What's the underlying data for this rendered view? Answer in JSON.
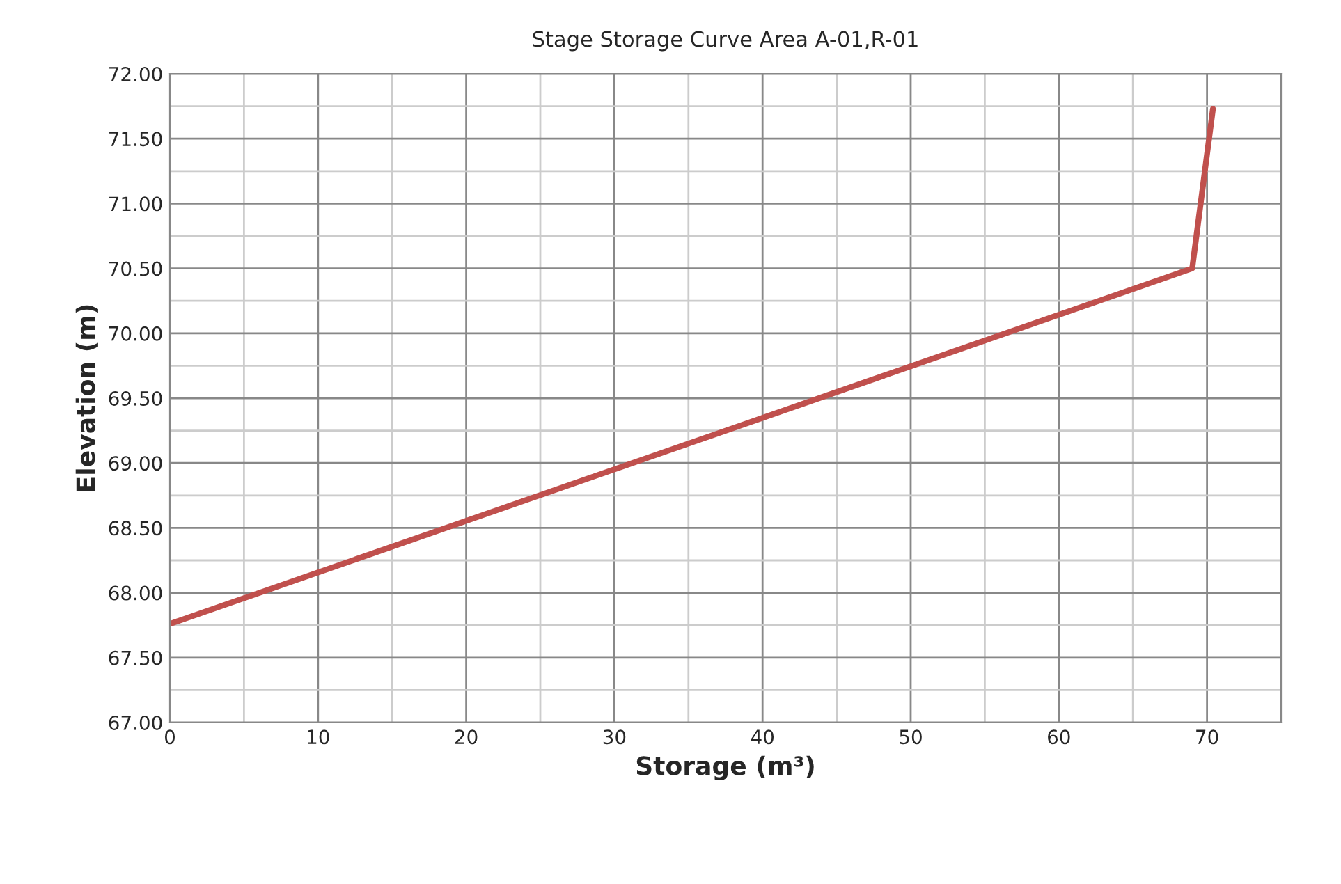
{
  "chart_data": {
    "type": "line",
    "title": "Stage Storage Curve Area A-01,R-01",
    "xlabel": "Storage (m³)",
    "ylabel": "Elevation (m)",
    "series": [
      {
        "color": "#c0504d",
        "x": [
          0,
          69.0,
          70.4
        ],
        "values": [
          67.76,
          70.5,
          71.73
        ]
      }
    ],
    "xlim": [
      0,
      75
    ],
    "xticks": [
      0,
      10,
      20,
      30,
      40,
      50,
      60,
      70
    ],
    "ylim": [
      67,
      72
    ],
    "yticks": [
      {
        "value": 67,
        "label": "67.00"
      },
      {
        "value": 67.5,
        "label": "67.50"
      },
      {
        "value": 68,
        "label": "68.00"
      },
      {
        "value": 68.5,
        "label": "68.50"
      },
      {
        "value": 69,
        "label": "69.00"
      },
      {
        "value": 69.5,
        "label": "69.50"
      },
      {
        "value": 70,
        "label": "70.00"
      },
      {
        "value": 70.5,
        "label": "70.50"
      },
      {
        "value": 71,
        "label": "71.00"
      },
      {
        "value": 71.5,
        "label": "71.50"
      },
      {
        "value": 72,
        "label": "72.00"
      }
    ],
    "grid": true,
    "marker": "none",
    "line_style": "solid",
    "legend": false
  }
}
